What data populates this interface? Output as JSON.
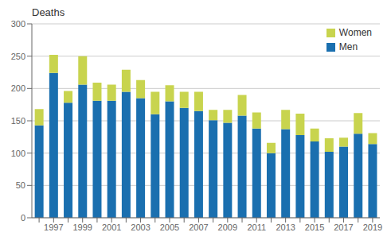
{
  "chart_data": {
    "type": "bar",
    "stacked": true,
    "ylabel": "Deaths",
    "categories": [
      null,
      "1997",
      null,
      "1999",
      null,
      "2001",
      null,
      "2003",
      null,
      "2005",
      null,
      "2007",
      null,
      "2009",
      null,
      "2011",
      null,
      "2013",
      null,
      "2015",
      null,
      "2017",
      null,
      "2019"
    ],
    "series": [
      {
        "name": "Men",
        "color": "#1a6faf",
        "values": [
          143,
          224,
          178,
          206,
          181,
          181,
          195,
          185,
          160,
          180,
          170,
          165,
          151,
          147,
          158,
          138,
          100,
          137,
          128,
          118,
          102,
          110,
          130,
          114
        ]
      },
      {
        "name": "Women",
        "color": "#c8d44e",
        "values": [
          25,
          28,
          18,
          44,
          28,
          25,
          34,
          28,
          35,
          25,
          25,
          30,
          16,
          20,
          32,
          25,
          16,
          30,
          33,
          20,
          21,
          14,
          32,
          17
        ]
      }
    ],
    "ylim": [
      0,
      300
    ],
    "yticks": [
      0,
      50,
      100,
      150,
      200,
      250,
      300
    ],
    "grid": true,
    "legend": "upper right"
  }
}
